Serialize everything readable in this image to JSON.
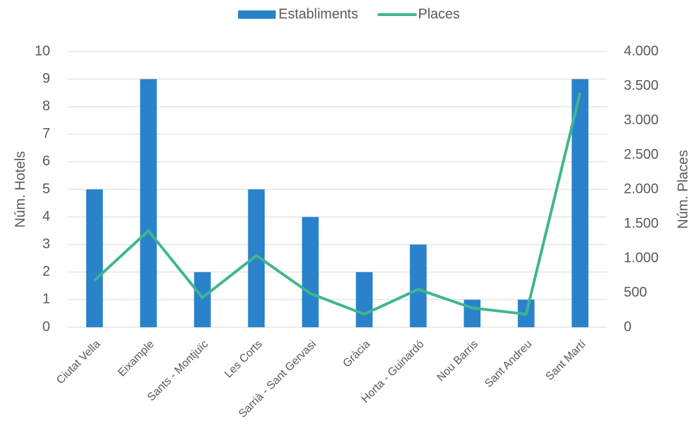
{
  "chart_data": {
    "type": "bar-line",
    "categories": [
      "Ciutat Vella",
      "Eixample",
      "Sants - Montjuïc",
      "Les Corts",
      "Sarrià - Sant Gervasi",
      "Gràcia",
      "Horta - Guinardó",
      "Nou Barris",
      "Sant Andreu",
      "Sant Martí"
    ],
    "series": [
      {
        "name": "Establiments",
        "type": "bar",
        "color": "#2a82cb",
        "values": [
          5,
          9,
          2,
          5,
          4,
          2,
          3,
          1,
          1,
          9
        ]
      },
      {
        "name": "Places",
        "type": "line",
        "axis": "y2",
        "color": "#3fb68e",
        "values": [
          680,
          1400,
          430,
          1040,
          490,
          190,
          550,
          280,
          190,
          3400
        ]
      }
    ],
    "y_label": "Núm. Hotels",
    "y2_label": "Núm. Places",
    "ylim": [
      0,
      10
    ],
    "yticks": [
      0,
      1,
      2,
      3,
      4,
      5,
      6,
      7,
      8,
      9,
      10
    ],
    "y2lim": [
      0,
      4000
    ],
    "y2ticks": [
      0,
      500,
      {
        "value": 1000,
        "label": "1.000"
      },
      {
        "value": 1500,
        "label": "1.500"
      },
      {
        "value": 2000,
        "label": "2.000"
      },
      {
        "value": 2500,
        "label": "2.500"
      },
      {
        "value": 3000,
        "label": "3.000"
      },
      {
        "value": 3500,
        "label": "3.500"
      },
      {
        "value": 4000,
        "label": "4.000"
      }
    ],
    "grid": true,
    "legend": "top"
  }
}
